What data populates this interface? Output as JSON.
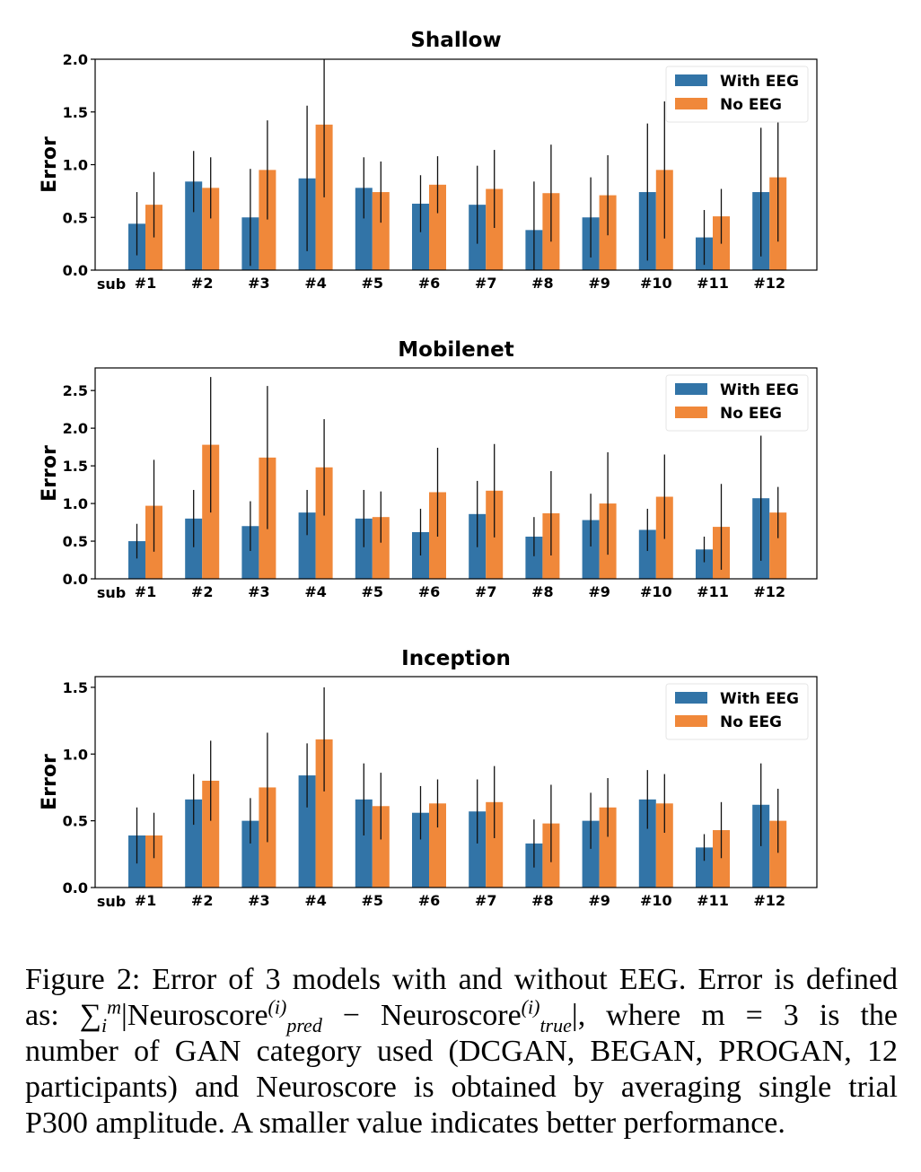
{
  "chart_data": [
    {
      "type": "bar",
      "title": "Shallow",
      "ylabel": "Error",
      "xlabel": "",
      "x_prefix_label": "sub",
      "categories": [
        "#1",
        "#2",
        "#3",
        "#4",
        "#5",
        "#6",
        "#7",
        "#8",
        "#9",
        "#10",
        "#11",
        "#12"
      ],
      "ylim": [
        0,
        2.0
      ],
      "yticks": [
        "0.0",
        "0.5",
        "1.0",
        "1.5",
        "2.0"
      ],
      "ytick_values": [
        0,
        0.5,
        1.0,
        1.5,
        2.0
      ],
      "legend_position": "top-right",
      "series": [
        {
          "name": "With EEG",
          "color": "#3274a7",
          "values": [
            0.44,
            0.84,
            0.5,
            0.87,
            0.78,
            0.63,
            0.62,
            0.38,
            0.5,
            0.74,
            0.31,
            0.74
          ],
          "errors": [
            0.3,
            0.29,
            0.46,
            0.69,
            0.29,
            0.27,
            0.37,
            0.46,
            0.38,
            0.65,
            0.26,
            0.61
          ]
        },
        {
          "name": "No EEG",
          "color": "#f0883a",
          "values": [
            0.62,
            0.78,
            0.95,
            1.38,
            0.74,
            0.81,
            0.77,
            0.73,
            0.71,
            0.95,
            0.51,
            0.88
          ],
          "errors": [
            0.31,
            0.29,
            0.47,
            0.69,
            0.29,
            0.27,
            0.37,
            0.46,
            0.38,
            0.65,
            0.26,
            0.61
          ]
        }
      ]
    },
    {
      "type": "bar",
      "title": "Mobilenet",
      "ylabel": "Error",
      "xlabel": "",
      "x_prefix_label": "sub",
      "categories": [
        "#1",
        "#2",
        "#3",
        "#4",
        "#5",
        "#6",
        "#7",
        "#8",
        "#9",
        "#10",
        "#11",
        "#12"
      ],
      "ylim": [
        0,
        2.8
      ],
      "yticks": [
        "0.0",
        "0.5",
        "1.0",
        "1.5",
        "2.0",
        "2.5"
      ],
      "ytick_values": [
        0,
        0.5,
        1.0,
        1.5,
        2.0,
        2.5
      ],
      "legend_position": "top-right",
      "series": [
        {
          "name": "With EEG",
          "color": "#3274a7",
          "values": [
            0.5,
            0.8,
            0.7,
            0.88,
            0.8,
            0.62,
            0.86,
            0.56,
            0.78,
            0.65,
            0.39,
            1.07
          ],
          "errors": [
            0.23,
            0.38,
            0.33,
            0.3,
            0.38,
            0.31,
            0.44,
            0.26,
            0.35,
            0.28,
            0.17,
            0.83
          ]
        },
        {
          "name": "No EEG",
          "color": "#f0883a",
          "values": [
            0.97,
            1.78,
            1.61,
            1.48,
            0.82,
            1.15,
            1.17,
            0.87,
            1.0,
            1.09,
            0.69,
            0.88
          ],
          "errors": [
            0.61,
            0.9,
            0.95,
            0.64,
            0.34,
            0.59,
            0.62,
            0.56,
            0.68,
            0.56,
            0.57,
            0.34
          ]
        }
      ]
    },
    {
      "type": "bar",
      "title": "Inception",
      "ylabel": "Error",
      "xlabel": "",
      "x_prefix_label": "sub",
      "categories": [
        "#1",
        "#2",
        "#3",
        "#4",
        "#5",
        "#6",
        "#7",
        "#8",
        "#9",
        "#10",
        "#11",
        "#12"
      ],
      "ylim": [
        0,
        1.58
      ],
      "yticks": [
        "0.0",
        "0.5",
        "1.0",
        "1.5"
      ],
      "ytick_values": [
        0,
        0.5,
        1.0,
        1.5
      ],
      "legend_position": "top-right",
      "series": [
        {
          "name": "With EEG",
          "color": "#3274a7",
          "values": [
            0.39,
            0.66,
            0.5,
            0.84,
            0.66,
            0.56,
            0.57,
            0.33,
            0.5,
            0.66,
            0.3,
            0.62
          ],
          "errors": [
            0.21,
            0.19,
            0.17,
            0.24,
            0.27,
            0.2,
            0.24,
            0.18,
            0.21,
            0.22,
            0.1,
            0.31
          ]
        },
        {
          "name": "No EEG",
          "color": "#f0883a",
          "values": [
            0.39,
            0.8,
            0.75,
            1.11,
            0.61,
            0.63,
            0.64,
            0.48,
            0.6,
            0.63,
            0.43,
            0.5
          ],
          "errors": [
            0.17,
            0.3,
            0.41,
            0.39,
            0.25,
            0.18,
            0.27,
            0.29,
            0.22,
            0.22,
            0.21,
            0.24
          ]
        }
      ]
    }
  ],
  "caption": {
    "line1": "Figure 2: Error of 3 models with and without EEG. Error is defined",
    "line2_prefix": "as: ",
    "sum_sym": "∑",
    "sum_sub": "i",
    "sum_sup": "m",
    "bar_open": "|Neuroscore",
    "pred_sup": "(i)",
    "pred_sub": "pred",
    "minus": " − Neuroscore",
    "true_sup": "(i)",
    "true_sub": "true",
    "line2_suffix": "|, where m = 3 is the",
    "line3": "number of GAN category used (DCGAN, BEGAN, PROGAN, 12",
    "line4": "participants) and Neuroscore is obtained by averaging single trial",
    "line5": "P300 amplitude. A smaller value indicates better performance."
  }
}
